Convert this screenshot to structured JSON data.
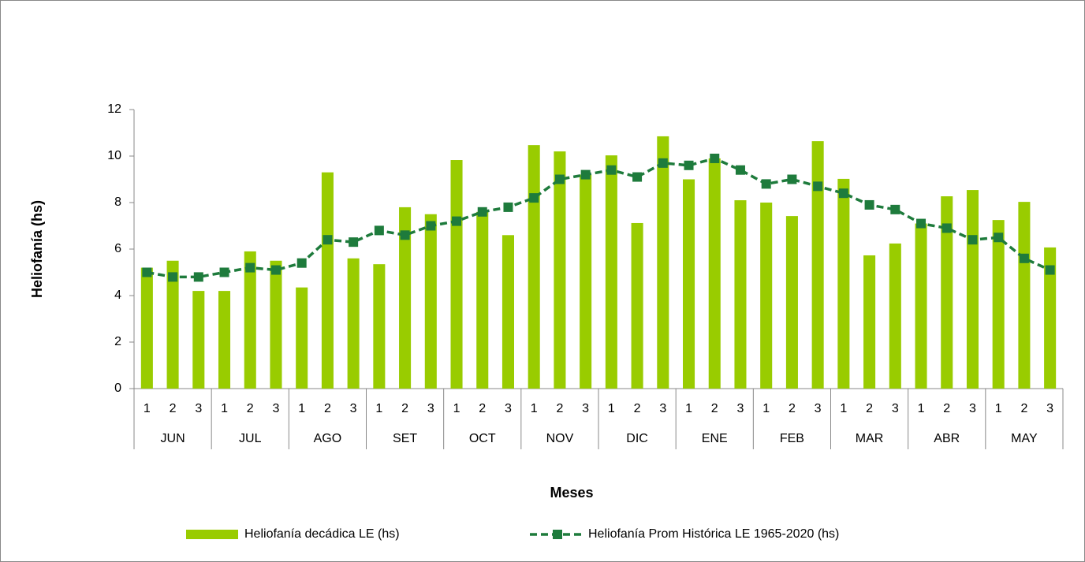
{
  "chart_data": {
    "type": "combo",
    "ylabel": "Heliofanía (hs)",
    "xlabel": "Meses",
    "categories": [
      "1",
      "2",
      "3",
      "1",
      "2",
      "3",
      "1",
      "2",
      "3",
      "1",
      "2",
      "3",
      "1",
      "2",
      "3",
      "1",
      "2",
      "3",
      "1",
      "2",
      "3",
      "1",
      "2",
      "3",
      "1",
      "2",
      "3",
      "1",
      "2",
      "3",
      "1",
      "2",
      "3",
      "1",
      "2",
      "3"
    ],
    "groups": [
      "JUN",
      "JUL",
      "AGO",
      "SET",
      "OCT",
      "NOV",
      "DIC",
      "ENE",
      "FEB",
      "MAR",
      "ABR",
      "MAY"
    ],
    "ylim": [
      0,
      12
    ],
    "yticks": [
      0,
      2,
      4,
      6,
      8,
      10,
      12
    ],
    "series": [
      {
        "name": "Heliofanía decádica LE (hs)",
        "type": "bar",
        "color": "#99cc00",
        "values": [
          5.2,
          5.5,
          4.2,
          4.2,
          5.9,
          5.5,
          4.35,
          9.3,
          5.6,
          5.35,
          7.8,
          7.5,
          9.83,
          7.6,
          6.6,
          10.47,
          10.2,
          9.2,
          10.03,
          7.12,
          10.85,
          9.0,
          9.9,
          8.1,
          8.0,
          7.42,
          10.64,
          9.02,
          5.73,
          6.24,
          7.1,
          8.27,
          8.54,
          7.25,
          8.03,
          6.07
        ]
      },
      {
        "name": "Heliofanía Prom Histórica LE 1965-2020 (hs)",
        "type": "line",
        "color": "#1e7b3c",
        "values": [
          5.0,
          4.8,
          4.8,
          5.0,
          5.2,
          5.1,
          5.4,
          6.4,
          6.3,
          6.8,
          6.6,
          7.0,
          7.2,
          7.6,
          7.8,
          8.2,
          9.0,
          9.2,
          9.4,
          9.1,
          9.7,
          9.6,
          9.9,
          9.4,
          8.8,
          9.0,
          8.7,
          8.4,
          7.9,
          7.7,
          7.1,
          6.9,
          6.4,
          6.5,
          5.6,
          5.1
        ]
      }
    ]
  }
}
